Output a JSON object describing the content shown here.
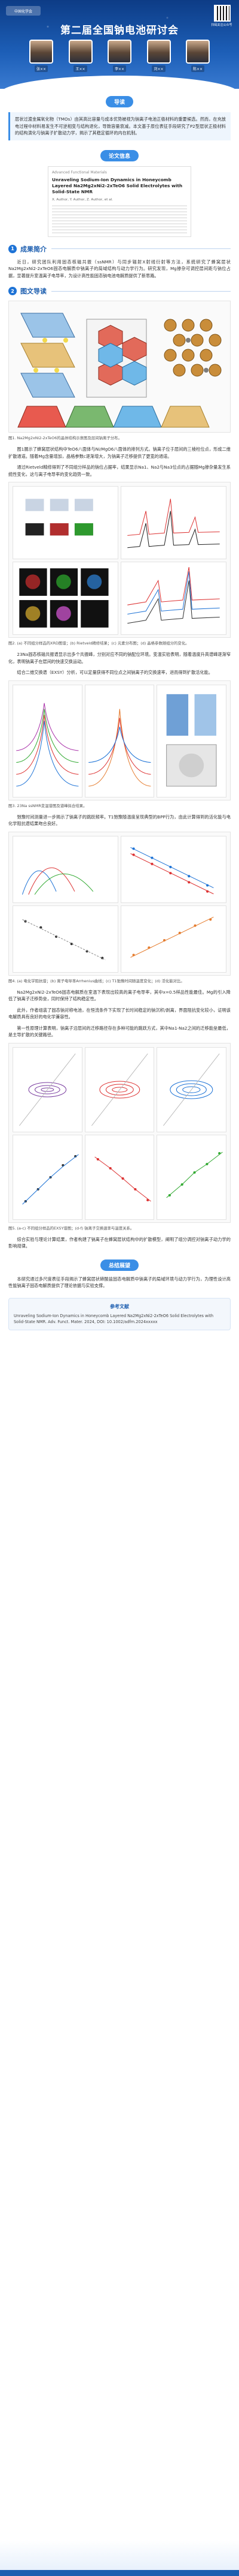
{
  "banner": {
    "logo_text": "中国化学会",
    "title": "第二届全国钠电池研讨会",
    "qr_caption": "扫码关注公众号",
    "speakers": [
      "张××",
      "王××",
      "李××",
      "刘××",
      "陈××"
    ]
  },
  "intro_pill": "导读",
  "intro_text": "层状过渡金属氧化物（TMOs）由其高比容量与成本优势被视为钠离子电池正极材料的重要候选。然而，在充放电过程中材料易发生不可逆相变与结构退化，导致容量衰减。本文基于原位表征手段研究了P2型层状正极材料的结构演化与钠离子扩散动力学，揭示了其稳定循环的内在机制。",
  "paper_pill": "论文信息",
  "paper": {
    "journal": "Advanced Functional Materials",
    "title": "Unraveling Sodium-Ion Dynamics in Honeycomb Layered Na2Mg2xNi2-2xTeO6 Solid Electrolytes with Solid-State NMR",
    "authors": "X. Author, Y. Author, Z. Author, et al."
  },
  "sections": [
    {
      "num": "1",
      "label": "成果简介"
    },
    {
      "num": "2",
      "label": "图文导读"
    },
    {
      "num": "3",
      "label": "总结展望"
    }
  ],
  "s1_text": "近日，研究团队利用固态核磁共振（ssNMR）与同步辐射X射线衍射等方法，系统研究了蜂窝层状Na2Mg2xNi2-2xTeO6固态电解质中钠离子的局域结构与动力学行为。研究发现，Mg掺杂可调控层间距与钠位占据，显著提升室温离子电导率，为设计高性能固态钠电池电解质提供了新思路。",
  "fig1_caption": "图1. Na2Mg2xNi2-2xTeO6的晶体结构示意图及层间钠离子分布。",
  "s2_p1": "图1展示了蜂窝层状结构中TeO6八面体与Ni/MgO6八面体的排列方式。钠离子位于层间的三棱柱位点，形成二维扩散通道。随着Mg含量增加，晶格参数c逐渐增大，为钠离子迁移提供了更宽的通道。",
  "s2_p2": "通过Rietveld精修得到了不同组分样品的钠位占据率，结果显示Na1、Na2与Na3位点的占据随Mg掺杂量发生系统性变化，这与离子电导率的变化趋势一致。",
  "fig2_caption": "图2. (a) 不同组分样品的XRD图谱；(b) Rietveld精修结果；(c) 元素分布图；(d) 晶格参数随组分的变化。",
  "s2_p3": "23Na固态核磁共振谱显示出多个共振峰，分别对应不同的钠配位环境。变温实验表明，随着温度升高谱峰逐渐窄化，表明钠离子在层间的快速交换运动。",
  "s2_p4": "结合二维交换谱（EXSY）分析，可以定量获得不同位点之间钠离子的交换速率，进而得到扩散活化能。",
  "fig3_caption": "图3. 23Na ssNMR变温谱图及谱峰拟合结果。",
  "s2_p5": "弛豫时间测量进一步揭示了钠离子的跳跃频率。T1弛豫随温度呈现典型的BPP行为，由此计算得到的活化能与电化学阻抗谱结果吻合良好。",
  "fig4_caption": "图4. (a) 电化学阻抗谱；(b) 离子电导率Arrhenius曲线；(c) T1弛豫时间随温度变化；(d) 活化能对比。",
  "s2_p6": "Na2Mg2xNi2-2xTeO6固态电解质在室温下表现出较高的离子电导率，其中x=0.5样品性能最佳。Mg的引入降低了钠离子迁移势垒，同时保持了结构稳定性。",
  "s2_p7": "此外，作者组装了固态钠对称电池，在恒流条件下实现了长时间稳定的钠沉积/剥离，界面阻抗变化较小，证明该电解质具有良好的电化学兼容性。",
  "s2_p8": "第一性原理计算表明，钠离子沿层间的迁移路径存在多种可能的跳跃方式，其中Na1-Na2之间的迁移能垒最低，是主导扩散的关键路径。",
  "fig5_caption": "图5. (a-c) 不同组分样品的EXSY谱图；(d-f) 钠离子交换速率与温度关系。",
  "s2_p9": "综合实验与理论计算结果，作者构建了钠离子在蜂窝层状结构中的扩散模型，阐明了组分调控对钠离子动力学的影响规律。",
  "s3_pill": "总结展望",
  "s3_text": "本研究通过多尺度表征手段揭示了蜂窝层状碲酸盐固态电解质中钠离子的局域环境与动力学行为，为理性设计高性能钠离子固态电解质提供了理论依据与实验支撑。",
  "ref": {
    "title": "参考文献",
    "content": "Unraveling Sodium-Ion Dynamics in Honeycomb Layered Na2Mg2xNi2-2xTeO6 Solid Electrolytes with Solid-State NMR. Adv. Funct. Mater. 2024, DOI: 10.1002/adfm.2024xxxxx"
  }
}
